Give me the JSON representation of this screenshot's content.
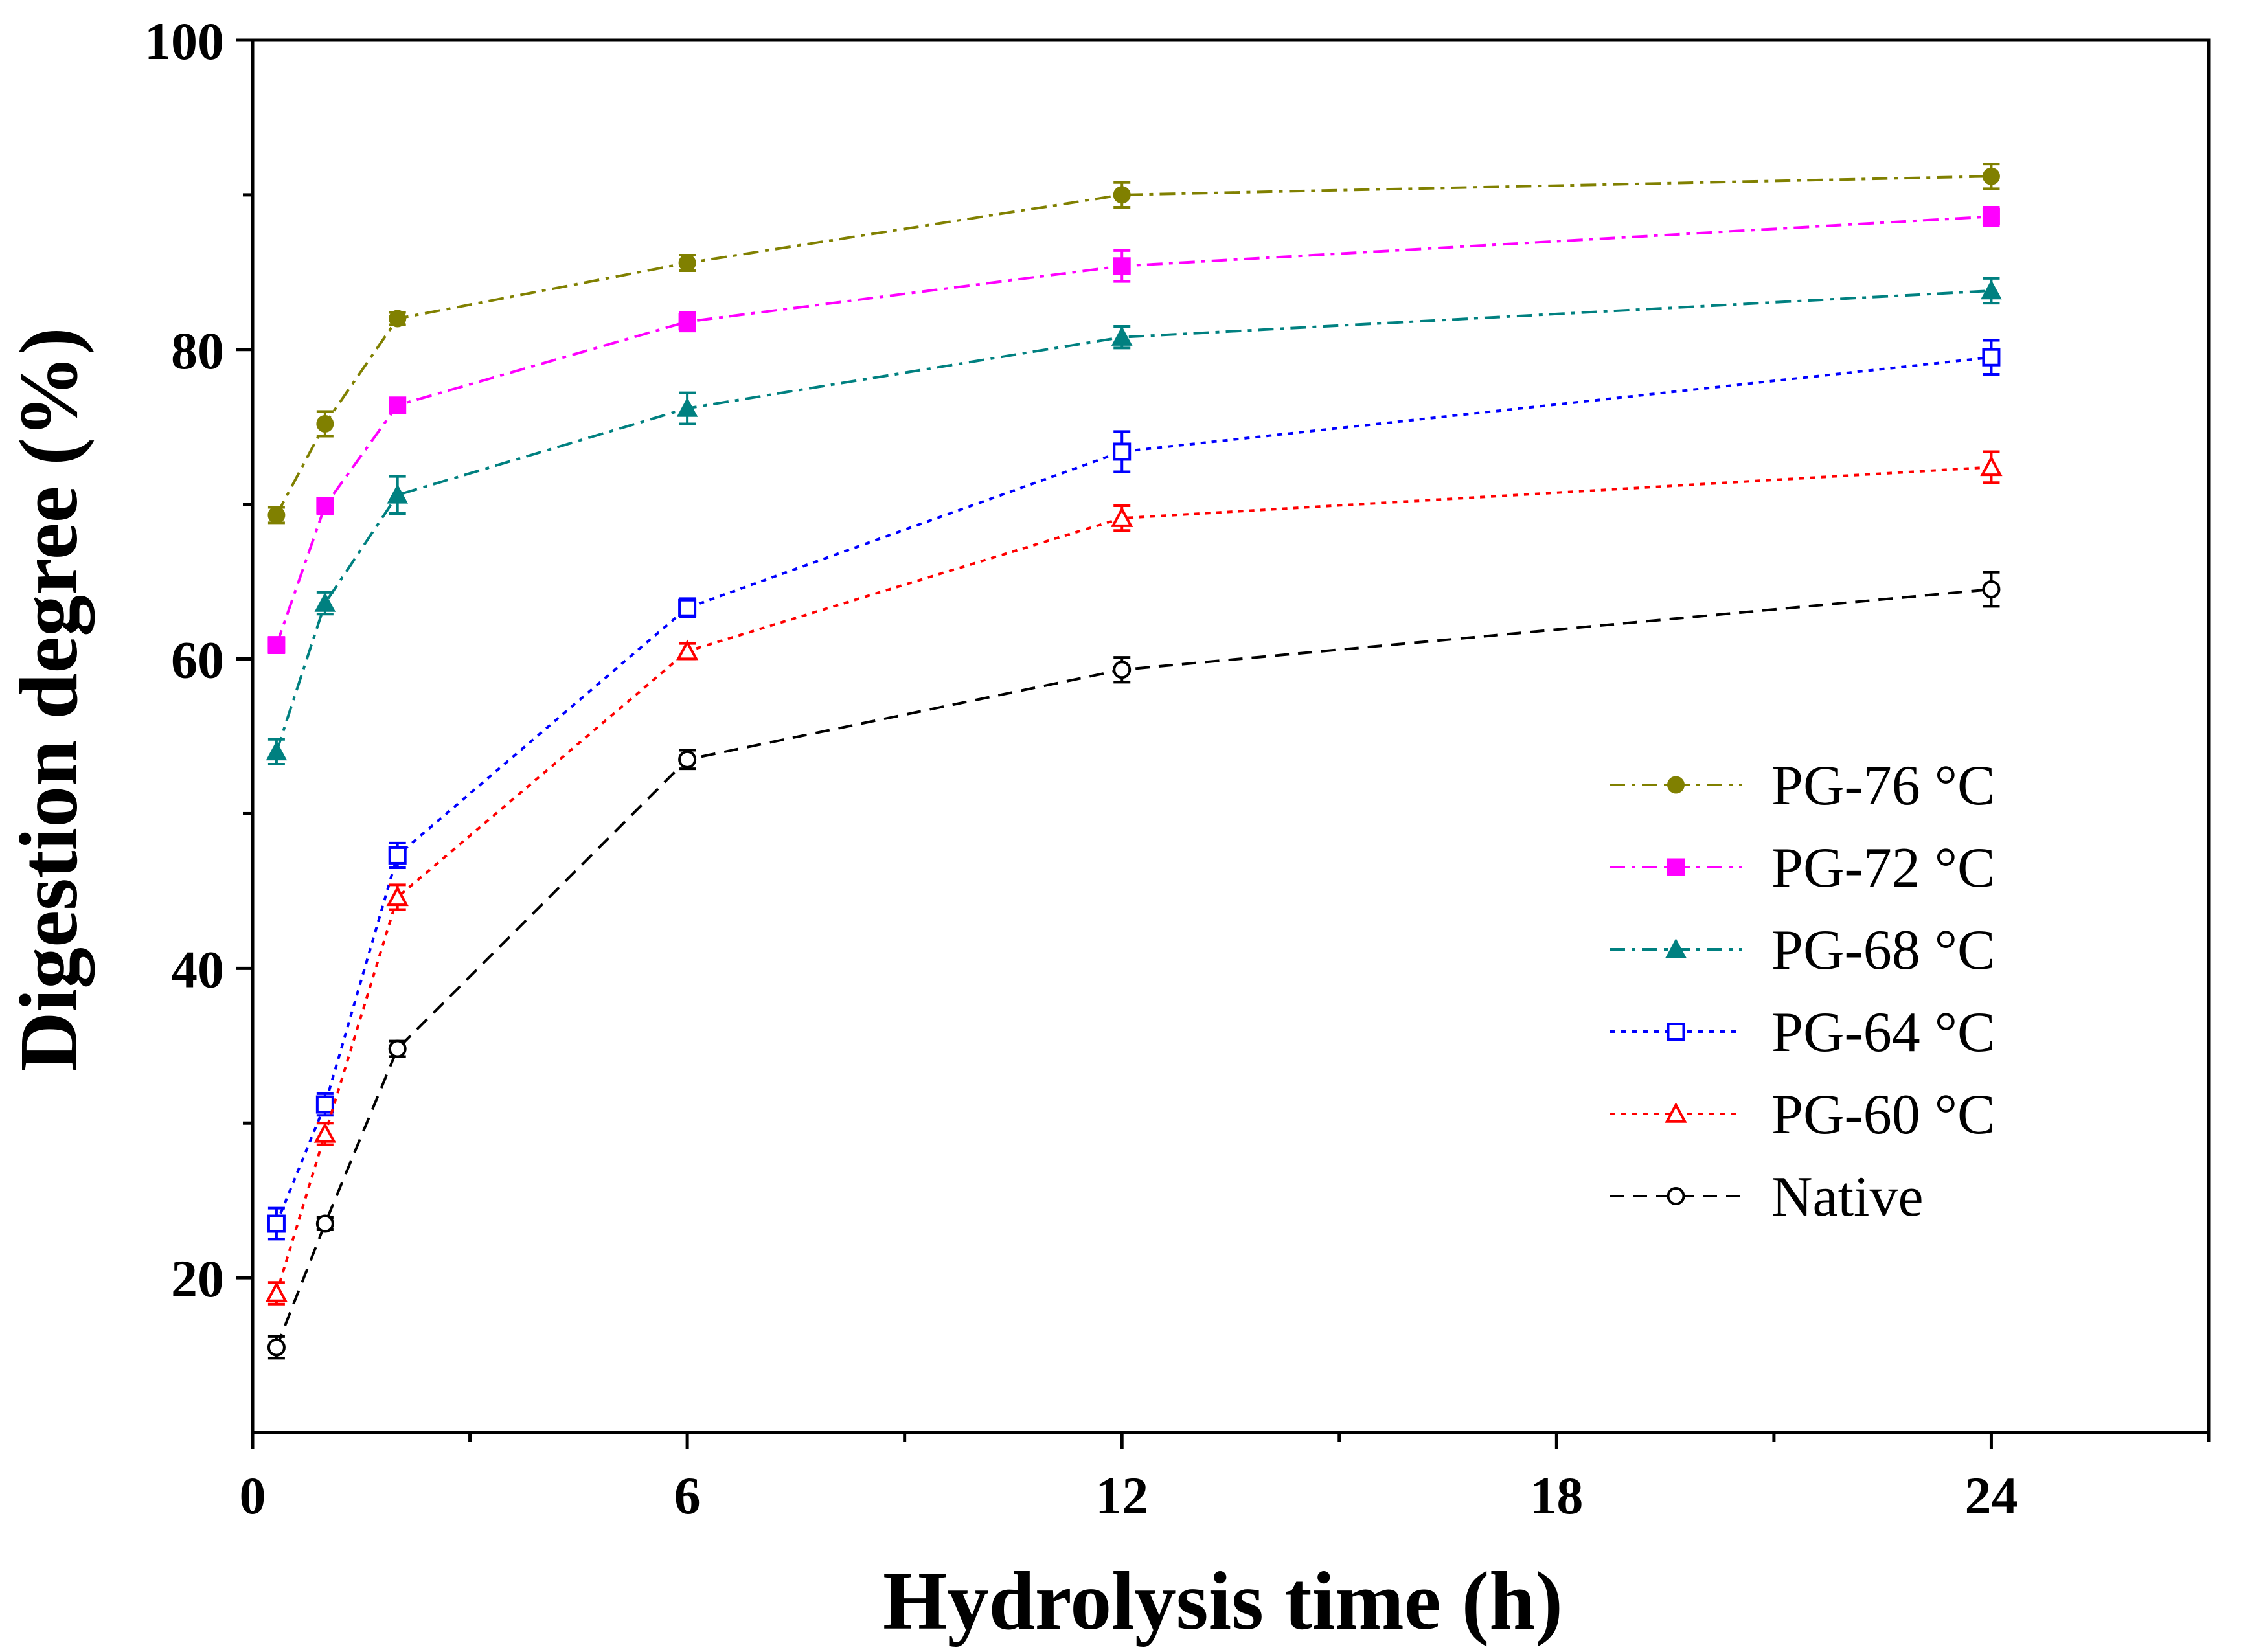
{
  "chart_data": {
    "type": "line",
    "title": "",
    "xlabel": "Hydrolysis time (h)",
    "ylabel": "Digestion degree (%)",
    "xlim": [
      0,
      27
    ],
    "ylim": [
      10,
      100
    ],
    "xticks": [
      0,
      6,
      12,
      18,
      24
    ],
    "xminor": [
      3,
      9,
      15,
      21,
      27
    ],
    "yticks": [
      20,
      40,
      60,
      80,
      100
    ],
    "yminor": [
      30,
      50,
      70,
      90
    ],
    "legend_position": "center-right",
    "x": [
      0.33,
      1,
      2,
      6,
      12,
      24
    ],
    "series": [
      {
        "name": "PG-76 °C",
        "color": "#808000",
        "marker": "circle",
        "filled": true,
        "dash": "dashdot",
        "values": [
          69.3,
          75.2,
          82.0,
          85.6,
          90.0,
          91.2
        ],
        "errors": [
          0.5,
          0.8,
          0.4,
          0.5,
          0.8,
          0.8
        ]
      },
      {
        "name": "PG-72 °C",
        "color": "#ff00ff",
        "marker": "square",
        "filled": true,
        "dash": "dashdot",
        "values": [
          60.9,
          69.9,
          76.4,
          81.8,
          85.4,
          88.6
        ],
        "errors": [
          0.5,
          0.5,
          0.4,
          0.6,
          1.0,
          0.6
        ]
      },
      {
        "name": "PG-68 °C",
        "color": "#008080",
        "marker": "triangle",
        "filled": true,
        "dash": "dashdot",
        "values": [
          54.0,
          63.6,
          70.6,
          76.2,
          80.8,
          83.8
        ],
        "errors": [
          0.8,
          0.7,
          1.2,
          1.0,
          0.7,
          0.8
        ]
      },
      {
        "name": "PG-64 °C",
        "color": "#0000ff",
        "marker": "square",
        "filled": false,
        "dash": "dot",
        "values": [
          23.5,
          31.2,
          47.3,
          63.3,
          73.4,
          79.5
        ],
        "errors": [
          1.0,
          0.7,
          0.8,
          0.6,
          1.3,
          1.1
        ]
      },
      {
        "name": "PG-60 °C",
        "color": "#ff0000",
        "marker": "triangle",
        "filled": false,
        "dash": "dot",
        "values": [
          19.0,
          29.3,
          44.6,
          60.5,
          69.1,
          72.4
        ],
        "errors": [
          0.7,
          0.7,
          0.8,
          0.5,
          0.8,
          1.0
        ]
      },
      {
        "name": "Native",
        "color": "#000000",
        "marker": "circle",
        "filled": false,
        "dash": "dash",
        "values": [
          15.5,
          23.5,
          34.8,
          53.5,
          59.3,
          64.5
        ],
        "errors": [
          0.7,
          0.4,
          0.5,
          0.6,
          0.8,
          1.1
        ]
      }
    ]
  }
}
